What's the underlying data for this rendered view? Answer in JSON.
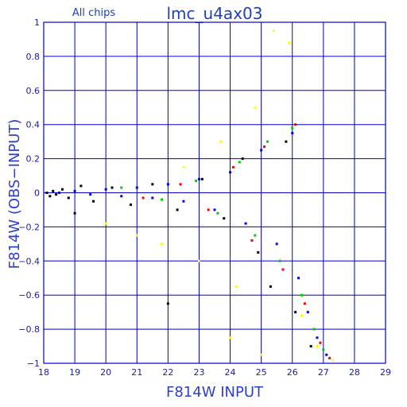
{
  "chart_data": {
    "type": "scatter",
    "title": "lmc_u4ax03",
    "subtitle": "All chips",
    "xlabel": "F814W INPUT",
    "ylabel": "F814W (OBS−INPUT)",
    "xlim": [
      18,
      29
    ],
    "ylim": [
      -1,
      1
    ],
    "x_ticks": [
      "18",
      "19",
      "20",
      "21",
      "22",
      "23",
      "24",
      "25",
      "26",
      "27",
      "28",
      "29"
    ],
    "y_ticks": [
      "1",
      "0.8",
      "0.6",
      "0.4",
      "0.2",
      "0",
      "−0.2",
      "−0.4",
      "−0.6",
      "−0.8",
      "−1"
    ],
    "grid": true,
    "colors": {
      "frame": "#0000cc",
      "grid": "#0000cc",
      "text": "#1f3fbf",
      "chip_black": "#000000",
      "chip_blue": "#0000ff",
      "chip_green": "#00cc00",
      "chip_red": "#ff0000",
      "chip_yellow": "#ffff00"
    },
    "series": [
      {
        "color": "#000000",
        "points": [
          [
            18.1,
            0
          ],
          [
            18.2,
            -0.02
          ],
          [
            18.3,
            0.01
          ],
          [
            18.4,
            -0.01
          ],
          [
            18.6,
            0.02
          ],
          [
            18.8,
            -0.03
          ],
          [
            19.2,
            0.04
          ],
          [
            19.6,
            -0.05
          ],
          [
            20.2,
            0.03
          ],
          [
            20.8,
            -0.07
          ],
          [
            21.5,
            0.05
          ],
          [
            22.3,
            -0.1
          ],
          [
            23.1,
            0.08
          ],
          [
            23.8,
            -0.15
          ],
          [
            24.4,
            0.2
          ],
          [
            24.9,
            -0.35
          ],
          [
            25.3,
            -0.55
          ],
          [
            25.8,
            0.3
          ],
          [
            26.1,
            -0.7
          ],
          [
            26.6,
            -0.9
          ],
          [
            22.0,
            -0.65
          ],
          [
            19.0,
            -0.12
          ]
        ]
      },
      {
        "color": "#0000ff",
        "points": [
          [
            18.5,
            0
          ],
          [
            19.0,
            0.01
          ],
          [
            19.5,
            -0.01
          ],
          [
            20.0,
            0.02
          ],
          [
            20.5,
            -0.02
          ],
          [
            21.0,
            0.03
          ],
          [
            21.5,
            -0.03
          ],
          [
            22.0,
            0.05
          ],
          [
            22.5,
            -0.05
          ],
          [
            23.0,
            0.08
          ],
          [
            23.5,
            -0.1
          ],
          [
            24.0,
            0.12
          ],
          [
            24.5,
            -0.18
          ],
          [
            25.0,
            0.25
          ],
          [
            25.5,
            -0.3
          ],
          [
            26.0,
            0.35
          ],
          [
            26.2,
            -0.5
          ],
          [
            26.5,
            -0.7
          ],
          [
            26.8,
            -0.85
          ],
          [
            27.1,
            -0.95
          ]
        ]
      },
      {
        "color": "#00cc00",
        "points": [
          [
            20.5,
            0.03
          ],
          [
            21.8,
            -0.04
          ],
          [
            22.9,
            0.07
          ],
          [
            23.6,
            -0.12
          ],
          [
            24.3,
            0.18
          ],
          [
            24.8,
            -0.25
          ],
          [
            25.2,
            0.3
          ],
          [
            25.6,
            -0.4
          ],
          [
            26.0,
            0.38
          ],
          [
            26.3,
            -0.6
          ],
          [
            26.7,
            -0.8
          ],
          [
            27.0,
            -0.92
          ]
        ]
      },
      {
        "color": "#ff0000",
        "points": [
          [
            21.2,
            -0.03
          ],
          [
            22.4,
            0.05
          ],
          [
            23.3,
            -0.1
          ],
          [
            24.1,
            0.15
          ],
          [
            24.7,
            -0.28
          ],
          [
            25.1,
            0.27
          ],
          [
            25.7,
            -0.45
          ],
          [
            26.1,
            0.4
          ],
          [
            26.4,
            -0.65
          ],
          [
            26.9,
            -0.88
          ],
          [
            27.2,
            -0.97
          ]
        ]
      },
      {
        "color": "#ffff00",
        "points": [
          [
            20.0,
            -0.18
          ],
          [
            21.0,
            -0.25
          ],
          [
            21.8,
            -0.3
          ],
          [
            22.5,
            0.15
          ],
          [
            23.0,
            -0.4
          ],
          [
            23.7,
            0.3
          ],
          [
            24.2,
            -0.55
          ],
          [
            24.8,
            0.5
          ],
          [
            25.4,
            0.95
          ],
          [
            25.9,
            0.88
          ],
          [
            26.3,
            -0.72
          ],
          [
            26.8,
            -0.9
          ],
          [
            27.3,
            -0.98
          ],
          [
            24.0,
            -0.85
          ],
          [
            25.0,
            -0.95
          ]
        ]
      }
    ]
  }
}
